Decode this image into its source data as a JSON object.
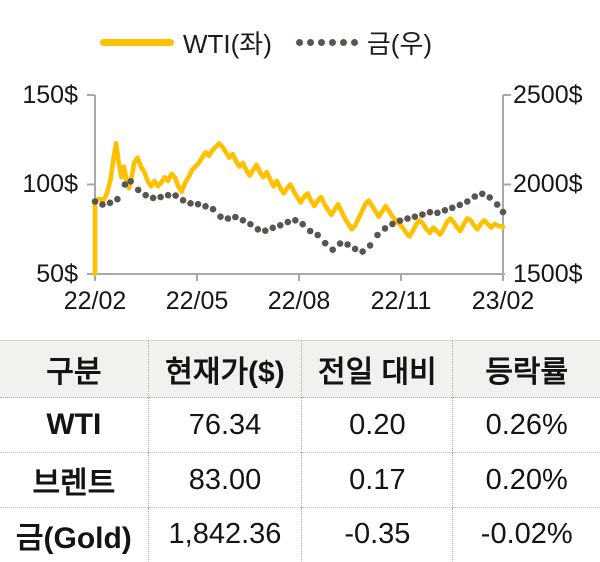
{
  "legend": {
    "items": [
      {
        "label": "WTI(좌)",
        "color": "#FFC000",
        "marker": "line"
      },
      {
        "label": "금(우)",
        "color": "#5A554F",
        "marker": "dots"
      }
    ]
  },
  "chart_data": {
    "type": "line",
    "title": "",
    "x_tick_labels": [
      "22/02",
      "22/05",
      "22/08",
      "22/11",
      "23/02"
    ],
    "x_range_months": [
      0,
      12
    ],
    "grid": false,
    "legend_position": "top",
    "left_axis": {
      "min": 50,
      "max": 150,
      "tick_labels": [
        "150$",
        "100$",
        "50$"
      ],
      "series": "WTI"
    },
    "right_axis": {
      "min": 1500,
      "max": 2500,
      "tick_labels": [
        "2500$",
        "2000$",
        "1500$"
      ],
      "series": "Gold"
    },
    "axis_color": "#A8A8A8",
    "series": [
      {
        "name": "WTI(좌)",
        "axis": "left",
        "style": "line",
        "color": "#FFC000",
        "stroke_width": 4.6,
        "points": [
          [
            0,
            50
          ],
          [
            0,
            91
          ],
          [
            0.12,
            92
          ],
          [
            0.25,
            91
          ],
          [
            0.35,
            95
          ],
          [
            0.45,
            102
          ],
          [
            0.55,
            115
          ],
          [
            0.62,
            123
          ],
          [
            0.7,
            112
          ],
          [
            0.78,
            104
          ],
          [
            0.85,
            110
          ],
          [
            0.92,
            103
          ],
          [
            1.0,
            98
          ],
          [
            1.08,
            104
          ],
          [
            1.15,
            112
          ],
          [
            1.25,
            115
          ],
          [
            1.35,
            110
          ],
          [
            1.45,
            107
          ],
          [
            1.55,
            102
          ],
          [
            1.65,
            99
          ],
          [
            1.75,
            102
          ],
          [
            1.85,
            99
          ],
          [
            1.95,
            101
          ],
          [
            2.05,
            104
          ],
          [
            2.15,
            102
          ],
          [
            2.25,
            106
          ],
          [
            2.35,
            104
          ],
          [
            2.45,
            99
          ],
          [
            2.55,
            96
          ],
          [
            2.65,
            101
          ],
          [
            2.75,
            104
          ],
          [
            2.85,
            108
          ],
          [
            2.95,
            110
          ],
          [
            3.05,
            112
          ],
          [
            3.15,
            115
          ],
          [
            3.25,
            118
          ],
          [
            3.35,
            116
          ],
          [
            3.45,
            119
          ],
          [
            3.55,
            121
          ],
          [
            3.65,
            123
          ],
          [
            3.75,
            121
          ],
          [
            3.85,
            118
          ],
          [
            3.95,
            115
          ],
          [
            4.05,
            117
          ],
          [
            4.15,
            113
          ],
          [
            4.25,
            110
          ],
          [
            4.35,
            112
          ],
          [
            4.45,
            108
          ],
          [
            4.55,
            105
          ],
          [
            4.65,
            108
          ],
          [
            4.75,
            111
          ],
          [
            4.85,
            107
          ],
          [
            4.95,
            104
          ],
          [
            5.05,
            107
          ],
          [
            5.15,
            103
          ],
          [
            5.25,
            99
          ],
          [
            5.35,
            102
          ],
          [
            5.45,
            98
          ],
          [
            5.55,
            95
          ],
          [
            5.65,
            98
          ],
          [
            5.75,
            100
          ],
          [
            5.85,
            96
          ],
          [
            5.95,
            93
          ],
          [
            6.05,
            90
          ],
          [
            6.15,
            93
          ],
          [
            6.25,
            95
          ],
          [
            6.35,
            91
          ],
          [
            6.45,
            88
          ],
          [
            6.55,
            91
          ],
          [
            6.65,
            93
          ],
          [
            6.75,
            89
          ],
          [
            6.85,
            86
          ],
          [
            6.95,
            83
          ],
          [
            7.05,
            86
          ],
          [
            7.15,
            89
          ],
          [
            7.25,
            85
          ],
          [
            7.35,
            81
          ],
          [
            7.45,
            78
          ],
          [
            7.55,
            75
          ],
          [
            7.65,
            77
          ],
          [
            7.75,
            81
          ],
          [
            7.85,
            85
          ],
          [
            7.95,
            89
          ],
          [
            8.05,
            91
          ],
          [
            8.15,
            88
          ],
          [
            8.25,
            85
          ],
          [
            8.35,
            82
          ],
          [
            8.45,
            85
          ],
          [
            8.55,
            88
          ],
          [
            8.65,
            85
          ],
          [
            8.75,
            82
          ],
          [
            8.85,
            80
          ],
          [
            8.95,
            78
          ],
          [
            9.05,
            76
          ],
          [
            9.15,
            73
          ],
          [
            9.25,
            71
          ],
          [
            9.35,
            74
          ],
          [
            9.45,
            78
          ],
          [
            9.55,
            80
          ],
          [
            9.65,
            78
          ],
          [
            9.75,
            75
          ],
          [
            9.85,
            73
          ],
          [
            9.95,
            76
          ],
          [
            10.05,
            74
          ],
          [
            10.15,
            72
          ],
          [
            10.25,
            75
          ],
          [
            10.35,
            79
          ],
          [
            10.45,
            81
          ],
          [
            10.55,
            79
          ],
          [
            10.65,
            76
          ],
          [
            10.75,
            74
          ],
          [
            10.85,
            78
          ],
          [
            10.95,
            81
          ],
          [
            11.05,
            80
          ],
          [
            11.15,
            77
          ],
          [
            11.25,
            75
          ],
          [
            11.35,
            78
          ],
          [
            11.45,
            80
          ],
          [
            11.55,
            78
          ],
          [
            11.65,
            76
          ],
          [
            11.75,
            78
          ],
          [
            11.85,
            77
          ],
          [
            12,
            76.3
          ]
        ]
      },
      {
        "name": "금(우)",
        "axis": "right",
        "style": "dots",
        "color": "#5A554F",
        "dot_radius": 3.3,
        "points": [
          [
            0.0,
            1905
          ],
          [
            0.22,
            1888
          ],
          [
            0.44,
            1898
          ],
          [
            0.66,
            1918
          ],
          [
            0.88,
            2000
          ],
          [
            1.05,
            2018
          ],
          [
            1.27,
            1970
          ],
          [
            1.49,
            1940
          ],
          [
            1.71,
            1925
          ],
          [
            1.93,
            1930
          ],
          [
            2.15,
            1940
          ],
          [
            2.37,
            1938
          ],
          [
            2.59,
            1912
          ],
          [
            2.81,
            1895
          ],
          [
            3.03,
            1890
          ],
          [
            3.25,
            1878
          ],
          [
            3.47,
            1862
          ],
          [
            3.69,
            1820
          ],
          [
            3.91,
            1810
          ],
          [
            4.13,
            1818
          ],
          [
            4.35,
            1800
          ],
          [
            4.57,
            1778
          ],
          [
            4.79,
            1750
          ],
          [
            5.01,
            1742
          ],
          [
            5.23,
            1758
          ],
          [
            5.45,
            1772
          ],
          [
            5.67,
            1790
          ],
          [
            5.89,
            1800
          ],
          [
            6.11,
            1778
          ],
          [
            6.33,
            1740
          ],
          [
            6.55,
            1718
          ],
          [
            6.77,
            1672
          ],
          [
            6.99,
            1636
          ],
          [
            7.21,
            1670
          ],
          [
            7.43,
            1665
          ],
          [
            7.65,
            1640
          ],
          [
            7.87,
            1625
          ],
          [
            8.09,
            1660
          ],
          [
            8.31,
            1718
          ],
          [
            8.53,
            1755
          ],
          [
            8.75,
            1780
          ],
          [
            8.97,
            1798
          ],
          [
            9.19,
            1810
          ],
          [
            9.41,
            1820
          ],
          [
            9.63,
            1832
          ],
          [
            9.85,
            1845
          ],
          [
            10.07,
            1842
          ],
          [
            10.29,
            1856
          ],
          [
            10.51,
            1870
          ],
          [
            10.73,
            1886
          ],
          [
            10.95,
            1905
          ],
          [
            11.17,
            1933
          ],
          [
            11.39,
            1948
          ],
          [
            11.61,
            1928
          ],
          [
            11.83,
            1888
          ],
          [
            12.0,
            1846
          ]
        ]
      }
    ]
  },
  "table": {
    "headers": [
      "구분",
      "현재가($)",
      "전일 대비",
      "등락률"
    ],
    "rows": [
      {
        "name": "WTI",
        "price": "76.34",
        "change": "0.20",
        "pct": "0.26%"
      },
      {
        "name": "브렌트",
        "price": "83.00",
        "change": "0.17",
        "pct": "0.20%"
      },
      {
        "name": "금(Gold)",
        "price": "1,842.36",
        "change": "-0.35",
        "pct": "-0.02%"
      }
    ]
  }
}
